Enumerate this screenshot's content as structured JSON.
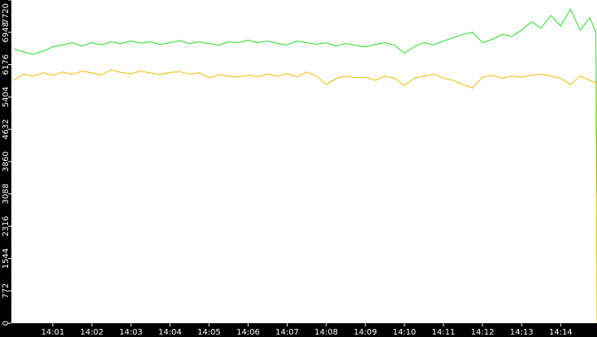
{
  "chart_data": {
    "type": "line",
    "x": [
      0,
      0.25,
      0.5,
      0.75,
      1,
      1.25,
      1.5,
      1.75,
      2,
      2.25,
      2.5,
      2.75,
      3,
      3.25,
      3.5,
      3.75,
      4,
      4.25,
      4.5,
      4.75,
      5,
      5.25,
      5.5,
      5.75,
      6,
      6.25,
      6.5,
      6.75,
      7,
      7.25,
      7.5,
      7.75,
      8,
      8.25,
      8.5,
      8.75,
      9,
      9.25,
      9.5,
      9.75,
      10,
      10.25,
      10.5,
      10.75,
      11,
      11.25,
      11.5,
      11.75,
      12,
      12.25,
      12.5,
      12.75,
      13,
      13.25,
      13.5,
      13.75,
      14,
      14.25,
      14.5,
      14.75,
      14.9,
      14.93
    ],
    "series": [
      {
        "color": "#22dd22",
        "values": [
          6550,
          6480,
          6420,
          6500,
          6600,
          6650,
          6700,
          6620,
          6700,
          6650,
          6720,
          6680,
          6740,
          6690,
          6720,
          6660,
          6700,
          6750,
          6680,
          6720,
          6680,
          6640,
          6720,
          6700,
          6760,
          6700,
          6740,
          6680,
          6650,
          6740,
          6700,
          6660,
          6700,
          6620,
          6680,
          6640,
          6600,
          6660,
          6700,
          6640,
          6450,
          6600,
          6700,
          6650,
          6740,
          6820,
          6900,
          6950,
          6700,
          6780,
          6900,
          6850,
          7000,
          7200,
          7050,
          7350,
          7100,
          7500,
          7000,
          7300,
          6950,
          3100
        ]
      },
      {
        "color": "#eebb00",
        "values": [
          5800,
          5950,
          5900,
          5980,
          5920,
          6000,
          5950,
          6020,
          5980,
          5930,
          6050,
          5990,
          5960,
          6020,
          5980,
          5940,
          5990,
          6010,
          5950,
          5980,
          5860,
          5940,
          5900,
          5880,
          5920,
          5890,
          5950,
          5900,
          5960,
          5880,
          6000,
          5900,
          5700,
          5850,
          5900,
          5860,
          5880,
          5800,
          5900,
          5850,
          5680,
          5850,
          5900,
          5950,
          5850,
          5800,
          5700,
          5620,
          5880,
          5920,
          5850,
          5900,
          5880,
          5920,
          5950,
          5900,
          5850,
          5700,
          5900,
          5800,
          5750,
          0
        ]
      }
    ],
    "xlim": [
      -0.06,
      14.93
    ],
    "xticks": [
      {
        "value": 1,
        "label": "14:01"
      },
      {
        "value": 2,
        "label": "14:02"
      },
      {
        "value": 3,
        "label": "14:03"
      },
      {
        "value": 4,
        "label": "14:04"
      },
      {
        "value": 5,
        "label": "14:05"
      },
      {
        "value": 6,
        "label": "14:06"
      },
      {
        "value": 7,
        "label": "14:07"
      },
      {
        "value": 8,
        "label": "14:08"
      },
      {
        "value": 9,
        "label": "14:09"
      },
      {
        "value": 10,
        "label": "14:10"
      },
      {
        "value": 11,
        "label": "14:11"
      },
      {
        "value": 12,
        "label": "14:12"
      },
      {
        "value": 13,
        "label": "14:13"
      },
      {
        "value": 14,
        "label": "14:14"
      }
    ],
    "ylim": [
      0,
      7720
    ],
    "yticks": [
      0,
      772,
      1544,
      2316,
      3088,
      3860,
      4632,
      5404,
      6176,
      6948,
      7720
    ]
  }
}
